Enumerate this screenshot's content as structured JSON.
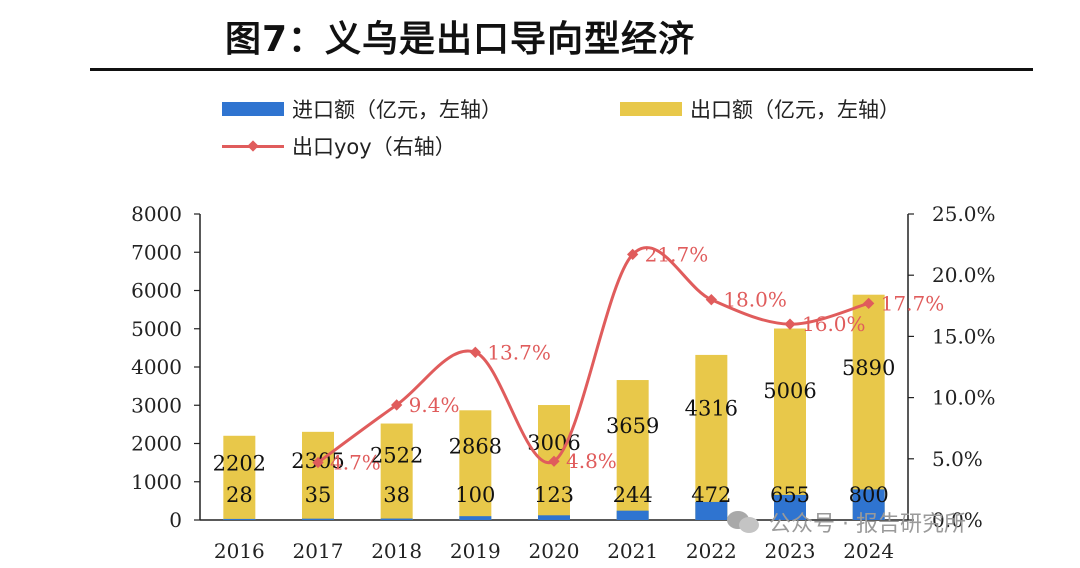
{
  "title": "图7：义乌是出口导向型经济",
  "legend": {
    "import_label": "进口额（亿元，左轴）",
    "export_label": "出口额（亿元，左轴）",
    "yoy_label": "出口yoy（右轴）"
  },
  "watermark": "公众号 · 报告研究所",
  "colors": {
    "import": "#2f74d0",
    "export": "#e8c84a",
    "yoy": "#e05c5c",
    "axis": "#222222"
  },
  "chart_data": {
    "type": "bar",
    "categories": [
      "2016",
      "2017",
      "2018",
      "2019",
      "2020",
      "2021",
      "2022",
      "2023",
      "2024"
    ],
    "series": [
      {
        "name": "进口额（亿元，左轴）",
        "values": [
          28,
          35,
          38,
          100,
          123,
          244,
          472,
          655,
          800
        ]
      },
      {
        "name": "出口额（亿元，左轴）",
        "values": [
          2202,
          2305,
          2522,
          2868,
          3006,
          3659,
          4316,
          5006,
          5890
        ]
      },
      {
        "name": "出口yoy（右轴）",
        "values": [
          null,
          4.7,
          9.4,
          13.7,
          4.8,
          21.7,
          18.0,
          16.0,
          17.7
        ]
      }
    ],
    "export_tick_labels": [
      "2202",
      "2305",
      "2522",
      "2868",
      "3006",
      "3659",
      "4316",
      "5006",
      "5890"
    ],
    "import_tick_labels": [
      "28",
      "35",
      "38",
      "100",
      "123",
      "244",
      "472",
      "655",
      "800"
    ],
    "yoy_labels": [
      "",
      "4.7%",
      "9.4%",
      "13.7%",
      "4.8%",
      "21.7%",
      "18.0%",
      "16.0%",
      "17.7%"
    ],
    "y_left": {
      "min": 0,
      "max": 8000,
      "ticks": [
        "0",
        "1000",
        "2000",
        "3000",
        "4000",
        "5000",
        "6000",
        "7000",
        "8000"
      ]
    },
    "y_right": {
      "min": 0,
      "max": 25,
      "ticks": [
        "0.0%",
        "5.0%",
        "10.0%",
        "15.0%",
        "20.0%",
        "25.0%"
      ]
    },
    "grid": false,
    "legend_position": "top"
  }
}
